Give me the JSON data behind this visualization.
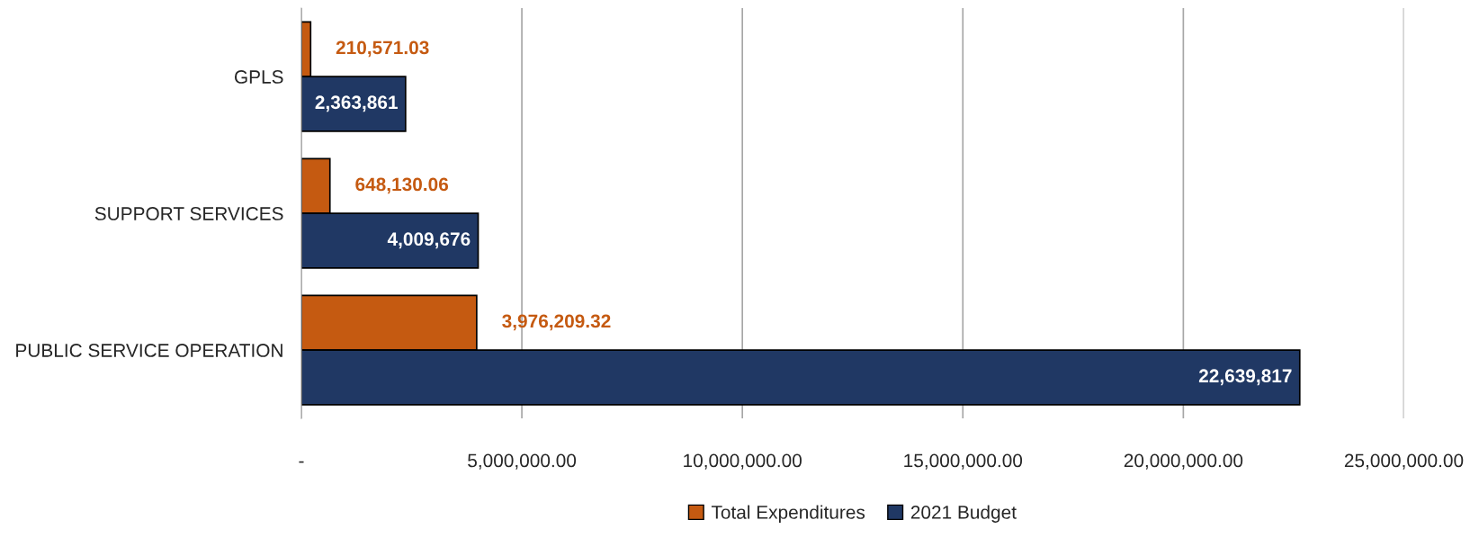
{
  "chart_data": {
    "type": "bar",
    "orientation": "horizontal",
    "categories": [
      "GPLS",
      "SUPPORT SERVICES",
      "PUBLIC SERVICE OPERATION"
    ],
    "series": [
      {
        "name": "Total Expenditures",
        "color": "#c55a11",
        "values": [
          210571.03,
          648130.06,
          3976209.32
        ],
        "value_labels": [
          "210,571.03",
          "648,130.06",
          "3,976,209.32"
        ]
      },
      {
        "name": "2021 Budget",
        "color": "#203864",
        "values": [
          2363861,
          4009676,
          22639817
        ],
        "value_labels": [
          "2,363,861",
          "4,009,676",
          "22,639,817"
        ]
      }
    ],
    "xlim": [
      0,
      25000000
    ],
    "xticks": [
      {
        "value": 0,
        "label": "-"
      },
      {
        "value": 5000000,
        "label": "5,000,000.00"
      },
      {
        "value": 10000000,
        "label": "10,000,000.00"
      },
      {
        "value": 15000000,
        "label": "15,000,000.00"
      },
      {
        "value": 20000000,
        "label": "20,000,000.00"
      },
      {
        "value": 25000000,
        "label": "25,000,000.00"
      }
    ],
    "grid": "x",
    "legend": "bottom"
  }
}
